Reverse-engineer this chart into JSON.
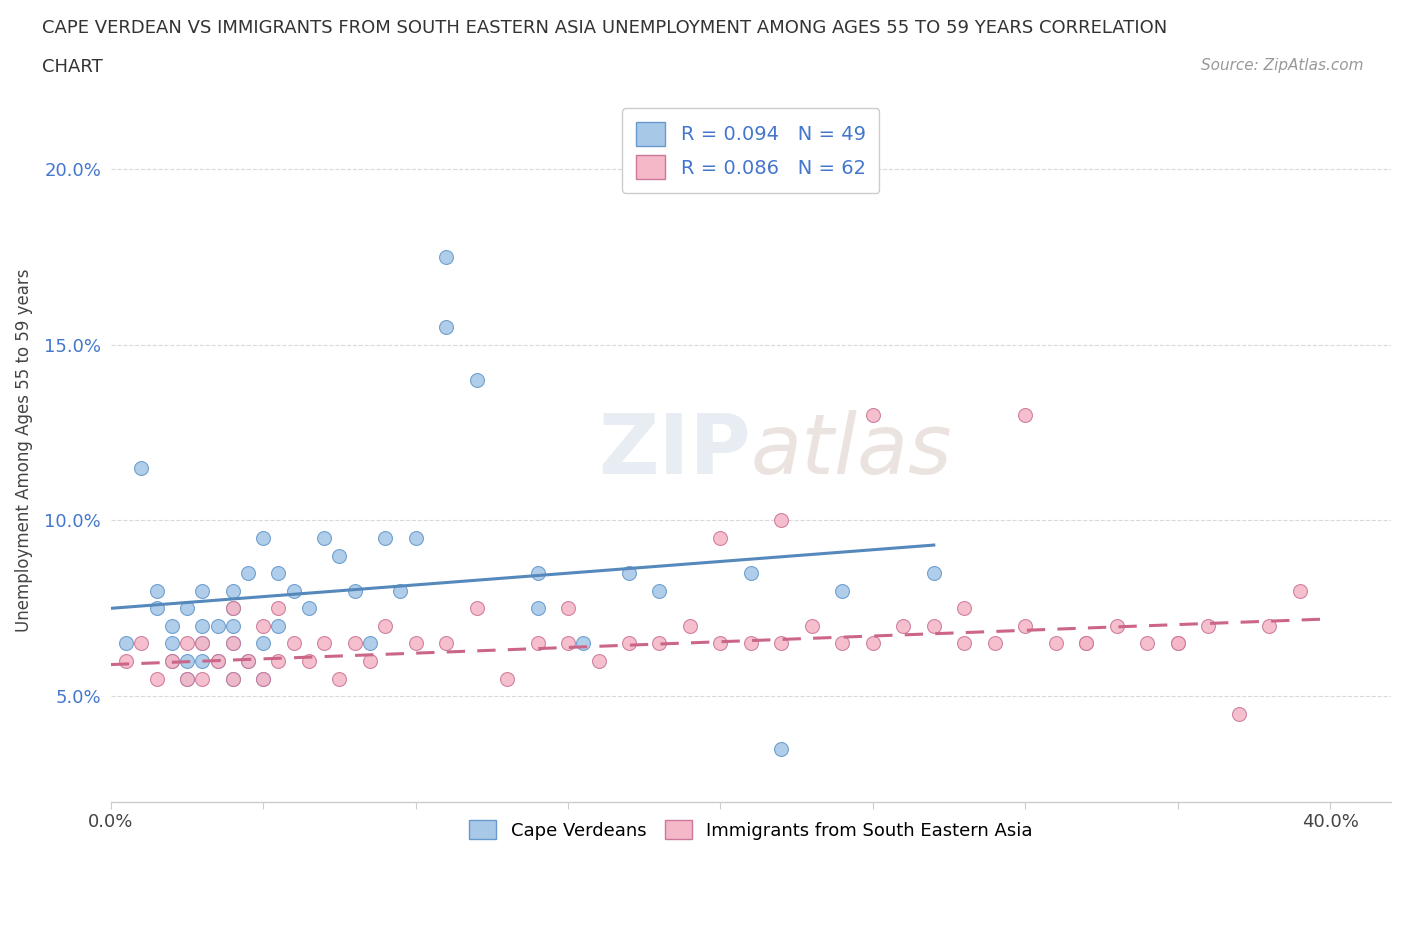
{
  "title_line1": "CAPE VERDEAN VS IMMIGRANTS FROM SOUTH EASTERN ASIA UNEMPLOYMENT AMONG AGES 55 TO 59 YEARS CORRELATION",
  "title_line2": "CHART",
  "source": "Source: ZipAtlas.com",
  "ylabel": "Unemployment Among Ages 55 to 59 years",
  "xlim": [
    0.0,
    0.42
  ],
  "ylim": [
    0.02,
    0.22
  ],
  "color_blue": "#a8c8e8",
  "color_blue_edge": "#6699cc",
  "color_pink": "#f4b8c8",
  "color_pink_edge": "#cc7799",
  "color_blue_line": "#5588bb",
  "color_pink_line": "#cc6688",
  "watermark": "ZIPatlas",
  "blue_scatter_x": [
    0.005,
    0.01,
    0.015,
    0.015,
    0.02,
    0.02,
    0.02,
    0.025,
    0.025,
    0.025,
    0.03,
    0.03,
    0.03,
    0.03,
    0.035,
    0.035,
    0.04,
    0.04,
    0.04,
    0.04,
    0.04,
    0.045,
    0.045,
    0.05,
    0.05,
    0.05,
    0.055,
    0.055,
    0.06,
    0.065,
    0.07,
    0.075,
    0.08,
    0.085,
    0.09,
    0.095,
    0.1,
    0.11,
    0.11,
    0.12,
    0.14,
    0.14,
    0.155,
    0.17,
    0.18,
    0.21,
    0.22,
    0.24,
    0.27
  ],
  "blue_scatter_y": [
    0.065,
    0.115,
    0.075,
    0.08,
    0.06,
    0.065,
    0.07,
    0.055,
    0.06,
    0.075,
    0.06,
    0.065,
    0.07,
    0.08,
    0.06,
    0.07,
    0.055,
    0.065,
    0.07,
    0.075,
    0.08,
    0.06,
    0.085,
    0.055,
    0.065,
    0.095,
    0.07,
    0.085,
    0.08,
    0.075,
    0.095,
    0.09,
    0.08,
    0.065,
    0.095,
    0.08,
    0.095,
    0.155,
    0.175,
    0.14,
    0.075,
    0.085,
    0.065,
    0.085,
    0.08,
    0.085,
    0.035,
    0.08,
    0.085
  ],
  "pink_scatter_x": [
    0.005,
    0.01,
    0.015,
    0.02,
    0.025,
    0.025,
    0.03,
    0.03,
    0.035,
    0.04,
    0.04,
    0.04,
    0.045,
    0.05,
    0.05,
    0.055,
    0.055,
    0.06,
    0.065,
    0.07,
    0.075,
    0.08,
    0.085,
    0.09,
    0.1,
    0.11,
    0.12,
    0.13,
    0.14,
    0.15,
    0.16,
    0.17,
    0.18,
    0.19,
    0.2,
    0.21,
    0.22,
    0.23,
    0.24,
    0.25,
    0.26,
    0.27,
    0.28,
    0.29,
    0.3,
    0.31,
    0.32,
    0.33,
    0.34,
    0.35,
    0.36,
    0.37,
    0.38,
    0.39,
    0.3,
    0.32,
    0.35,
    0.22,
    0.25,
    0.28,
    0.2,
    0.15
  ],
  "pink_scatter_y": [
    0.06,
    0.065,
    0.055,
    0.06,
    0.055,
    0.065,
    0.055,
    0.065,
    0.06,
    0.055,
    0.065,
    0.075,
    0.06,
    0.055,
    0.07,
    0.06,
    0.075,
    0.065,
    0.06,
    0.065,
    0.055,
    0.065,
    0.06,
    0.07,
    0.065,
    0.065,
    0.075,
    0.055,
    0.065,
    0.065,
    0.06,
    0.065,
    0.065,
    0.07,
    0.065,
    0.065,
    0.065,
    0.07,
    0.065,
    0.065,
    0.07,
    0.07,
    0.065,
    0.065,
    0.07,
    0.065,
    0.065,
    0.07,
    0.065,
    0.065,
    0.07,
    0.045,
    0.07,
    0.08,
    0.13,
    0.065,
    0.065,
    0.1,
    0.13,
    0.075,
    0.095,
    0.075
  ],
  "blue_trend_x": [
    0.0,
    0.27
  ],
  "blue_trend_y": [
    0.075,
    0.093
  ],
  "pink_trend_x": [
    0.0,
    0.4
  ],
  "pink_trend_y": [
    0.059,
    0.072
  ],
  "background_color": "#ffffff",
  "grid_color": "#d0d0d0"
}
